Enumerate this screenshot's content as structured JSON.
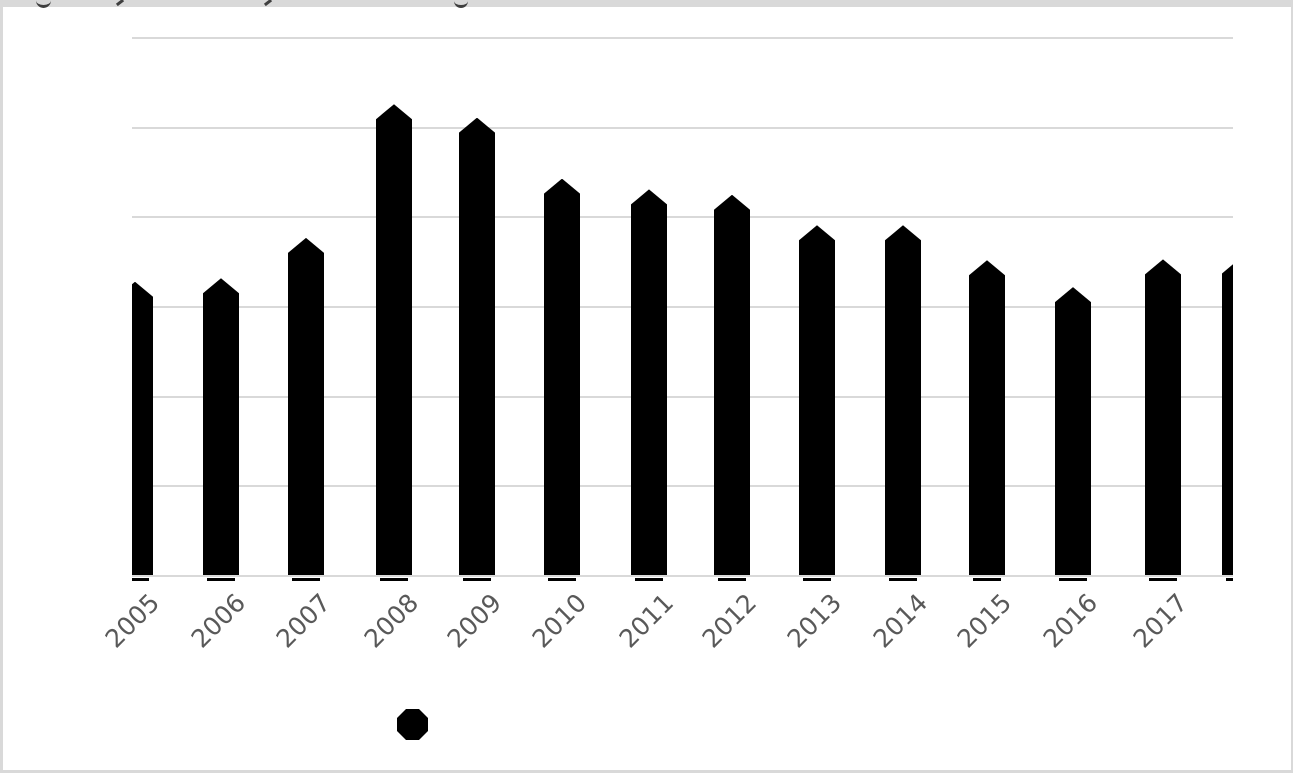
{
  "colors": {
    "bar": "#000000",
    "gridline": "#d9d9d9",
    "frame": "#d9d9d9",
    "axis_label": "#595959",
    "title_fragment": "#3f3f3f"
  },
  "chart_data": {
    "type": "bar",
    "title": "",
    "xlabel": "",
    "ylabel": "",
    "categories": [
      "2005",
      "2006",
      "2007",
      "2008",
      "2009",
      "2010",
      "2011",
      "2012",
      "2013",
      "2014",
      "2015",
      "2016",
      "2017",
      ""
    ],
    "values": [
      3.27,
      3.31,
      3.76,
      5.25,
      5.1,
      4.42,
      4.3,
      4.24,
      3.9,
      3.9,
      3.51,
      3.21,
      3.52,
      3.53
    ],
    "value_unit": "gridline-units (y-axis has no visible tick labels)",
    "ylim": [
      0,
      6
    ],
    "gridlines": {
      "count": 7,
      "visible": true,
      "color": "#d9d9d9"
    },
    "bar_style": "solid black with pointed pentagon top",
    "clipping_note": "first bar clipped by left plot edge, last (unlabeled) bar clipped by right plot edge",
    "x_tick_rotation_deg": 45,
    "legend": {
      "position": "bottom-center",
      "marker": "black-octagon",
      "label": ""
    }
  },
  "top_clipped_text": {
    "description": "bottom descender fragments of a cut-off title line",
    "fragments": [
      "curve",
      "slash",
      "slash",
      "curve"
    ]
  }
}
